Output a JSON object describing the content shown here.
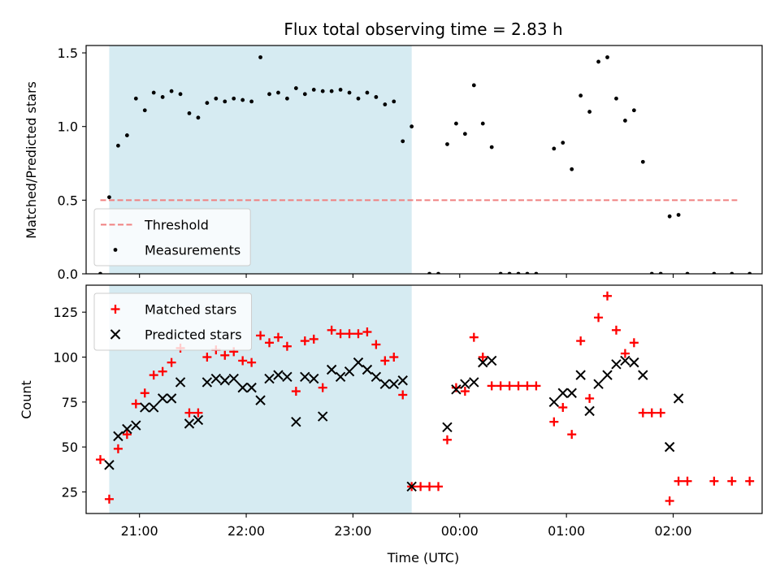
{
  "chart_data": [
    {
      "type": "scatter",
      "title": "Flux total observing time = 2.83 h",
      "ylabel": "Matched/Predicted stars",
      "ylim": [
        0,
        1.55
      ],
      "yticks": [
        0.0,
        0.5,
        1.0,
        1.5
      ],
      "yticklabels": [
        "0.0",
        "0.5",
        "1.0",
        "1.5"
      ],
      "xlim": [
        "20:30",
        "02:50"
      ],
      "xticks": [
        "21:00",
        "22:00",
        "23:00",
        "00:00",
        "01:00",
        "02:00"
      ],
      "shaded_span": [
        "20:43",
        "23:33"
      ],
      "shaded_color": "#add8e6",
      "threshold": {
        "name": "Threshold",
        "value": 0.5,
        "x": [
          "20:38",
          "02:36"
        ],
        "color": "#f08080"
      },
      "legend_position": "lower-left",
      "series": [
        {
          "name": "Measurements",
          "color": "#000000",
          "marker": "dot",
          "points": [
            [
              "20:38",
              0.0
            ],
            [
              "20:43",
              0.52
            ],
            [
              "20:48",
              0.87
            ],
            [
              "20:53",
              0.94
            ],
            [
              "20:58",
              1.19
            ],
            [
              "21:03",
              1.11
            ],
            [
              "21:08",
              1.23
            ],
            [
              "21:13",
              1.2
            ],
            [
              "21:18",
              1.24
            ],
            [
              "21:23",
              1.22
            ],
            [
              "21:28",
              1.09
            ],
            [
              "21:33",
              1.06
            ],
            [
              "21:38",
              1.16
            ],
            [
              "21:43",
              1.19
            ],
            [
              "21:48",
              1.17
            ],
            [
              "21:53",
              1.19
            ],
            [
              "21:58",
              1.18
            ],
            [
              "22:03",
              1.17
            ],
            [
              "22:08",
              1.47
            ],
            [
              "22:13",
              1.22
            ],
            [
              "22:18",
              1.23
            ],
            [
              "22:23",
              1.19
            ],
            [
              "22:28",
              1.26
            ],
            [
              "22:33",
              1.22
            ],
            [
              "22:38",
              1.25
            ],
            [
              "22:43",
              1.24
            ],
            [
              "22:48",
              1.24
            ],
            [
              "22:53",
              1.25
            ],
            [
              "22:58",
              1.23
            ],
            [
              "23:03",
              1.19
            ],
            [
              "23:08",
              1.23
            ],
            [
              "23:13",
              1.2
            ],
            [
              "23:18",
              1.15
            ],
            [
              "23:23",
              1.17
            ],
            [
              "23:28",
              0.9
            ],
            [
              "23:33",
              1.0
            ],
            [
              "23:43",
              0.0
            ],
            [
              "23:48",
              0.0
            ],
            [
              "23:53",
              0.88
            ],
            [
              "23:58",
              1.02
            ],
            [
              "00:03",
              0.95
            ],
            [
              "00:08",
              1.28
            ],
            [
              "00:13",
              1.02
            ],
            [
              "00:18",
              0.86
            ],
            [
              "00:23",
              0.0
            ],
            [
              "00:28",
              0.0
            ],
            [
              "00:33",
              0.0
            ],
            [
              "00:38",
              0.0
            ],
            [
              "00:43",
              0.0
            ],
            [
              "00:53",
              0.85
            ],
            [
              "00:58",
              0.89
            ],
            [
              "01:03",
              0.71
            ],
            [
              "01:08",
              1.21
            ],
            [
              "01:13",
              1.1
            ],
            [
              "01:18",
              1.44
            ],
            [
              "01:23",
              1.47
            ],
            [
              "01:28",
              1.19
            ],
            [
              "01:33",
              1.04
            ],
            [
              "01:38",
              1.11
            ],
            [
              "01:43",
              0.76
            ],
            [
              "01:48",
              0.0
            ],
            [
              "01:53",
              0.0
            ],
            [
              "01:58",
              0.39
            ],
            [
              "02:03",
              0.4
            ],
            [
              "02:08",
              0.0
            ],
            [
              "02:23",
              0.0
            ],
            [
              "02:33",
              0.0
            ],
            [
              "02:43",
              0.0
            ]
          ]
        }
      ]
    },
    {
      "type": "scatter",
      "ylabel": "Count",
      "xlabel": "Time (UTC)",
      "ylim": [
        13,
        140
      ],
      "yticks": [
        25,
        50,
        75,
        100,
        125
      ],
      "yticklabels": [
        "25",
        "50",
        "75",
        "100",
        "125"
      ],
      "xlim": [
        "20:30",
        "02:50"
      ],
      "xticks": [
        "21:00",
        "22:00",
        "23:00",
        "00:00",
        "01:00",
        "02:00"
      ],
      "xticklabels": [
        "21:00",
        "22:00",
        "23:00",
        "00:00",
        "01:00",
        "02:00"
      ],
      "shaded_span": [
        "20:43",
        "23:33"
      ],
      "shaded_color": "#add8e6",
      "legend_position": "upper-left",
      "series": [
        {
          "name": "Matched stars",
          "color": "#ff0000",
          "marker": "plus",
          "points": [
            [
              "20:38",
              43
            ],
            [
              "20:43",
              21
            ],
            [
              "20:48",
              49
            ],
            [
              "20:53",
              57
            ],
            [
              "20:58",
              74
            ],
            [
              "21:03",
              80
            ],
            [
              "21:08",
              90
            ],
            [
              "21:13",
              92
            ],
            [
              "21:18",
              97
            ],
            [
              "21:23",
              105
            ],
            [
              "21:28",
              69
            ],
            [
              "21:33",
              69
            ],
            [
              "21:38",
              100
            ],
            [
              "21:43",
              104
            ],
            [
              "21:48",
              101
            ],
            [
              "21:53",
              103
            ],
            [
              "21:58",
              98
            ],
            [
              "22:03",
              97
            ],
            [
              "22:08",
              112
            ],
            [
              "22:13",
              108
            ],
            [
              "22:18",
              111
            ],
            [
              "22:23",
              106
            ],
            [
              "22:28",
              81
            ],
            [
              "22:33",
              109
            ],
            [
              "22:38",
              110
            ],
            [
              "22:43",
              83
            ],
            [
              "22:48",
              115
            ],
            [
              "22:53",
              113
            ],
            [
              "22:58",
              113
            ],
            [
              "23:03",
              113
            ],
            [
              "23:08",
              114
            ],
            [
              "23:13",
              107
            ],
            [
              "23:18",
              98
            ],
            [
              "23:23",
              100
            ],
            [
              "23:28",
              79
            ],
            [
              "23:33",
              28
            ],
            [
              "23:38",
              28
            ],
            [
              "23:43",
              28
            ],
            [
              "23:48",
              28
            ],
            [
              "23:53",
              54
            ],
            [
              "23:58",
              83
            ],
            [
              "00:03",
              81
            ],
            [
              "00:08",
              111
            ],
            [
              "00:13",
              100
            ],
            [
              "00:18",
              84
            ],
            [
              "00:23",
              84
            ],
            [
              "00:28",
              84
            ],
            [
              "00:33",
              84
            ],
            [
              "00:38",
              84
            ],
            [
              "00:43",
              84
            ],
            [
              "00:53",
              64
            ],
            [
              "00:58",
              72
            ],
            [
              "01:03",
              57
            ],
            [
              "01:08",
              109
            ],
            [
              "01:13",
              77
            ],
            [
              "01:18",
              122
            ],
            [
              "01:23",
              134
            ],
            [
              "01:28",
              115
            ],
            [
              "01:33",
              102
            ],
            [
              "01:38",
              108
            ],
            [
              "01:43",
              69
            ],
            [
              "01:48",
              69
            ],
            [
              "01:53",
              69
            ],
            [
              "01:58",
              20
            ],
            [
              "02:03",
              31
            ],
            [
              "02:08",
              31
            ],
            [
              "02:23",
              31
            ],
            [
              "02:33",
              31
            ],
            [
              "02:43",
              31
            ]
          ]
        },
        {
          "name": "Predicted stars",
          "color": "#000000",
          "marker": "x",
          "points": [
            [
              "20:43",
              40
            ],
            [
              "20:48",
              56
            ],
            [
              "20:53",
              60
            ],
            [
              "20:58",
              62
            ],
            [
              "21:03",
              72
            ],
            [
              "21:08",
              72
            ],
            [
              "21:13",
              77
            ],
            [
              "21:18",
              77
            ],
            [
              "21:23",
              86
            ],
            [
              "21:28",
              63
            ],
            [
              "21:33",
              65
            ],
            [
              "21:38",
              86
            ],
            [
              "21:43",
              88
            ],
            [
              "21:48",
              87
            ],
            [
              "21:53",
              88
            ],
            [
              "21:58",
              83
            ],
            [
              "22:03",
              83
            ],
            [
              "22:08",
              76
            ],
            [
              "22:13",
              88
            ],
            [
              "22:18",
              90
            ],
            [
              "22:23",
              89
            ],
            [
              "22:28",
              64
            ],
            [
              "22:33",
              89
            ],
            [
              "22:38",
              88
            ],
            [
              "22:43",
              67
            ],
            [
              "22:48",
              93
            ],
            [
              "22:53",
              89
            ],
            [
              "22:58",
              92
            ],
            [
              "23:03",
              97
            ],
            [
              "23:08",
              93
            ],
            [
              "23:13",
              89
            ],
            [
              "23:18",
              85
            ],
            [
              "23:23",
              85
            ],
            [
              "23:28",
              87
            ],
            [
              "23:33",
              28
            ],
            [
              "23:53",
              61
            ],
            [
              "23:58",
              82
            ],
            [
              "00:03",
              85
            ],
            [
              "00:08",
              86
            ],
            [
              "00:13",
              97
            ],
            [
              "00:18",
              98
            ],
            [
              "00:53",
              75
            ],
            [
              "00:58",
              80
            ],
            [
              "01:03",
              80
            ],
            [
              "01:08",
              90
            ],
            [
              "01:13",
              70
            ],
            [
              "01:18",
              85
            ],
            [
              "01:23",
              90
            ],
            [
              "01:28",
              96
            ],
            [
              "01:33",
              98
            ],
            [
              "01:38",
              97
            ],
            [
              "01:43",
              90
            ],
            [
              "01:58",
              50
            ],
            [
              "02:03",
              77
            ]
          ]
        }
      ]
    }
  ]
}
